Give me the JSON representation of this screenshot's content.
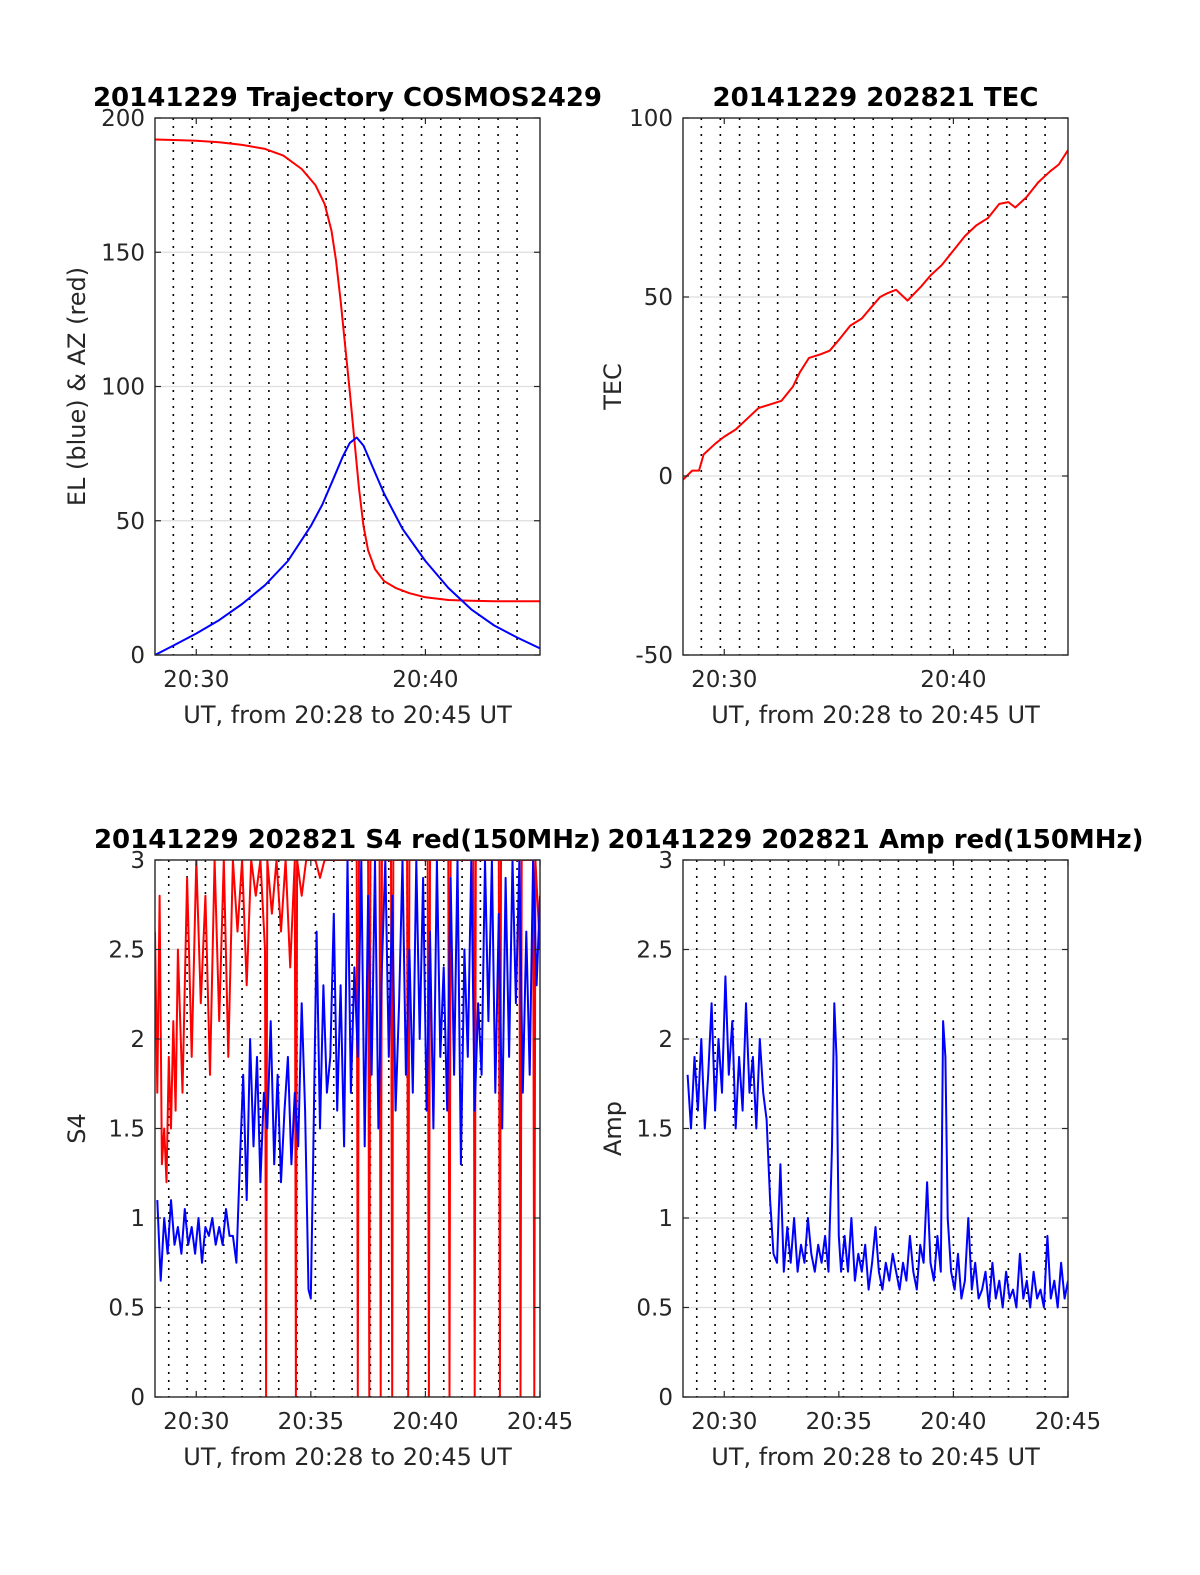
{
  "chart_data": [
    {
      "type": "line",
      "title": "20141229 Trajectory COSMOS2429",
      "xlabel": "UT, from 20:28 to 20:45 UT",
      "ylabel": "EL (blue) & AZ (red)",
      "x_unit": "minutes after 20:00 UT",
      "xlim": [
        28.2,
        45
      ],
      "ylim": [
        0,
        200
      ],
      "xticks": [
        {
          "value": 30,
          "label": "20:30"
        },
        {
          "value": 40,
          "label": "20:40"
        }
      ],
      "yticks": [
        0,
        50,
        100,
        150,
        200
      ],
      "vlines": [
        29,
        29.83,
        30.67,
        31.5,
        32.33,
        33.17,
        34,
        34.83,
        35.67,
        36.5,
        37.33,
        38.17,
        39,
        39.83,
        40.67,
        41.5,
        42.33,
        43.17,
        44
      ],
      "grid": "horizontal",
      "series": [
        {
          "color": "#ff0000",
          "x": [
            28.2,
            29,
            30,
            31,
            32,
            33,
            33.8,
            34.6,
            35.2,
            35.6,
            35.9,
            36.1,
            36.3,
            36.5,
            36.7,
            36.9,
            37.1,
            37.3,
            37.5,
            37.8,
            38.2,
            38.7,
            39.3,
            40,
            41,
            42,
            43,
            44,
            45
          ],
          "y": [
            192,
            191.8,
            191.5,
            191,
            190,
            188.5,
            186,
            181,
            175,
            168,
            158,
            147,
            132,
            115,
            98,
            80,
            62,
            48,
            39,
            32,
            27.5,
            25,
            23,
            21.5,
            20.5,
            20.2,
            20,
            20,
            20
          ]
        },
        {
          "color": "#0000ff",
          "x": [
            28.2,
            29,
            30,
            31,
            32,
            33,
            34,
            35,
            35.5,
            36,
            36.4,
            36.7,
            37,
            37.3,
            37.7,
            38.2,
            39,
            40,
            41,
            42,
            43,
            44,
            45
          ],
          "y": [
            0,
            3.5,
            8,
            13,
            19,
            26,
            35,
            48,
            56,
            66,
            74,
            79,
            81,
            78,
            70,
            60,
            47,
            35,
            25,
            17,
            11,
            6.5,
            2.5
          ]
        }
      ]
    },
    {
      "type": "line",
      "title": "20141229 202821 TEC",
      "xlabel": "UT, from 20:28 to 20:45 UT",
      "ylabel": "TEC",
      "x_unit": "minutes after 20:00 UT",
      "xlim": [
        28.2,
        45
      ],
      "ylim": [
        -50,
        100
      ],
      "xticks": [
        {
          "value": 30,
          "label": "20:30"
        },
        {
          "value": 40,
          "label": "20:40"
        }
      ],
      "yticks": [
        -50,
        0,
        50,
        100
      ],
      "vlines": [
        29,
        29.83,
        30.67,
        31.5,
        32.33,
        33.17,
        34,
        34.83,
        35.67,
        36.5,
        37.33,
        38.17,
        39,
        39.83,
        40.67,
        41.5,
        42.33,
        43.17,
        44
      ],
      "grid": "horizontal",
      "series": [
        {
          "color": "#ff0000",
          "x": [
            28.2,
            28.6,
            28.9,
            29.1,
            29.6,
            30,
            30.5,
            31,
            31.5,
            32,
            32.5,
            33,
            33.3,
            33.7,
            34.2,
            34.6,
            35,
            35.5,
            36,
            36.4,
            36.8,
            37.1,
            37.5,
            38,
            38.6,
            39,
            39.5,
            40,
            40.5,
            41,
            41.5,
            42,
            42.4,
            42.7,
            43.2,
            43.7,
            44.2,
            44.6,
            45
          ],
          "y": [
            -1,
            1.5,
            1.5,
            6,
            9,
            11,
            13,
            16,
            19,
            20,
            21,
            25,
            29,
            33,
            34,
            35,
            38,
            42,
            44,
            47,
            50,
            51,
            52,
            49,
            53,
            56,
            59,
            63,
            67,
            70,
            72,
            76,
            76.5,
            75,
            78,
            82,
            85,
            87,
            91
          ]
        }
      ]
    },
    {
      "type": "line",
      "title": "20141229 202821 S4 red(150MHz)",
      "xlabel": "UT, from 20:28 to 20:45 UT",
      "ylabel": "S4",
      "x_unit": "minutes after 20:00 UT",
      "xlim": [
        28.2,
        45
      ],
      "ylim": [
        0,
        3
      ],
      "xticks": [
        {
          "value": 30,
          "label": "20:30"
        },
        {
          "value": 35,
          "label": "20:35"
        },
        {
          "value": 40,
          "label": "20:40"
        },
        {
          "value": 45,
          "label": "20:45"
        }
      ],
      "yticks": [
        0,
        0.5,
        1,
        1.5,
        2,
        2.5,
        3
      ],
      "vlines": [
        28.8,
        29.6,
        30.4,
        31.2,
        32,
        32.8,
        33.6,
        34.4,
        35.2,
        36,
        36.8,
        37.6,
        38.4,
        39.2,
        40,
        40.8,
        41.6,
        42.4,
        43.2,
        44
      ],
      "grid": "horizontal",
      "series": [
        {
          "color": "#ff0000",
          "x": [
            28.2,
            28.3,
            28.4,
            28.5,
            28.6,
            28.7,
            28.8,
            28.9,
            29.0,
            29.1,
            29.2,
            29.4,
            29.6,
            29.8,
            30.0,
            30.2,
            30.4,
            30.6,
            30.8,
            31.0,
            31.2,
            31.4,
            31.6,
            31.8,
            32.0,
            32.2,
            32.4,
            32.6,
            32.8,
            33.0,
            33.05,
            33.1,
            33.3,
            33.5,
            33.7,
            33.9,
            34.1,
            34.3,
            34.35,
            34.4,
            34.6,
            34.8,
            35.0,
            35.2,
            35.4,
            35.6,
            35.8,
            36.0,
            36.2,
            36.4,
            36.6,
            36.8,
            37.0,
            37.05,
            37.1,
            37.3,
            37.5,
            37.55,
            37.6,
            37.8,
            38.0,
            38.05,
            38.1,
            38.3,
            38.5,
            38.55,
            38.6,
            38.8,
            39.0,
            39.2,
            39.25,
            39.3,
            39.5,
            39.7,
            39.9,
            40.1,
            40.15,
            40.2,
            40.4,
            40.6,
            40.8,
            41.0,
            41.05,
            41.1,
            41.3,
            41.5,
            41.7,
            41.9,
            42.1,
            42.15,
            42.2,
            42.4,
            42.6,
            42.8,
            43.0,
            43.2,
            43.25,
            43.3,
            43.5,
            43.7,
            43.9,
            44.1,
            44.15,
            44.2,
            44.4,
            44.6,
            44.7,
            44.75,
            44.8,
            45.0
          ],
          "y": [
            2.6,
            1.7,
            2.8,
            1.3,
            1.5,
            1.2,
            1.9,
            1.5,
            2.1,
            1.6,
            2.5,
            1.7,
            2.9,
            1.9,
            3,
            2.2,
            2.8,
            1.8,
            3,
            2.1,
            3,
            1.9,
            3,
            2.6,
            3,
            2.3,
            3,
            2.8,
            3,
            2.5,
            0,
            3,
            2.7,
            3,
            2.6,
            3,
            2.4,
            3,
            0,
            3,
            2.8,
            3,
            3,
            3,
            2.9,
            3,
            3,
            3,
            3,
            3,
            3,
            3,
            3,
            0,
            3,
            3,
            3,
            0,
            3,
            3,
            3,
            0,
            3,
            3,
            3,
            0,
            3,
            3,
            3,
            3,
            0,
            3,
            3,
            3,
            3,
            3,
            0,
            3,
            3,
            3,
            3,
            3,
            0,
            3,
            3,
            3,
            3,
            3,
            3,
            0,
            3,
            3,
            3,
            3,
            3,
            3,
            0,
            3,
            3,
            3,
            3,
            3,
            0,
            3,
            3,
            3,
            3,
            0,
            3,
            2.5
          ]
        },
        {
          "color": "#0000ff",
          "x": [
            28.3,
            28.45,
            28.6,
            28.75,
            28.9,
            29.05,
            29.2,
            29.35,
            29.5,
            29.65,
            29.8,
            29.95,
            30.1,
            30.25,
            30.4,
            30.55,
            30.7,
            30.85,
            31.0,
            31.15,
            31.3,
            31.45,
            31.6,
            31.75,
            31.9,
            32.05,
            32.2,
            32.35,
            32.5,
            32.65,
            32.8,
            32.95,
            33.1,
            33.25,
            33.4,
            33.55,
            33.7,
            33.85,
            34.0,
            34.15,
            34.3,
            34.45,
            34.6,
            34.75,
            34.9,
            35.0,
            35.1,
            35.25,
            35.4,
            35.55,
            35.7,
            35.85,
            36.0,
            36.15,
            36.3,
            36.45,
            36.6,
            36.75,
            36.9,
            37.05,
            37.2,
            37.35,
            37.5,
            37.65,
            37.8,
            37.95,
            38.1,
            38.25,
            38.4,
            38.55,
            38.7,
            38.85,
            39.0,
            39.15,
            39.3,
            39.45,
            39.6,
            39.75,
            39.9,
            40.05,
            40.2,
            40.35,
            40.5,
            40.65,
            40.8,
            40.95,
            41.1,
            41.25,
            41.4,
            41.55,
            41.7,
            41.85,
            42.0,
            42.15,
            42.3,
            42.45,
            42.6,
            42.75,
            42.9,
            43.05,
            43.2,
            43.35,
            43.5,
            43.65,
            43.8,
            43.95,
            44.1,
            44.25,
            44.4,
            44.55,
            44.7,
            44.85,
            45.0
          ],
          "y": [
            1.1,
            0.65,
            1.0,
            0.8,
            1.1,
            0.85,
            0.95,
            0.8,
            1.05,
            0.85,
            0.95,
            0.8,
            1.0,
            0.75,
            0.95,
            0.9,
            1.0,
            0.85,
            0.95,
            0.85,
            1.05,
            0.9,
            0.9,
            0.75,
            1.3,
            1.8,
            1.1,
            2.0,
            1.4,
            1.9,
            1.2,
            1.7,
            1.5,
            2.1,
            1.3,
            1.8,
            1.2,
            1.6,
            1.9,
            1.3,
            1.7,
            1.4,
            2.2,
            1.6,
            0.6,
            0.55,
            1.3,
            2.6,
            1.5,
            2.3,
            1.7,
            1.9,
            2.7,
            1.6,
            2.3,
            1.4,
            3.0,
            1.7,
            2.4,
            1.9,
            3.0,
            1.4,
            2.8,
            1.8,
            3.0,
            1.5,
            2.4,
            3.0,
            1.9,
            2.8,
            1.6,
            2.2,
            3.0,
            1.8,
            2.5,
            1.7,
            3.0,
            2.0,
            2.9,
            1.6,
            2.6,
            1.5,
            3.0,
            1.9,
            2.4,
            1.6,
            2.9,
            1.8,
            3.0,
            1.3,
            2.5,
            1.9,
            3.0,
            1.6,
            2.2,
            1.8,
            3.0,
            2.1,
            3.0,
            1.7,
            2.7,
            1.5,
            2.9,
            1.9,
            3.0,
            2.2,
            3.0,
            1.7,
            2.6,
            1.8,
            3.0,
            2.3,
            2.8
          ]
        }
      ]
    },
    {
      "type": "line",
      "title": "20141229 202821 Amp red(150MHz)",
      "xlabel": "UT, from 20:28 to 20:45 UT",
      "ylabel": "Amp",
      "x_unit": "minutes after 20:00 UT",
      "xlim": [
        28.2,
        45
      ],
      "ylim": [
        0,
        3
      ],
      "xticks": [
        {
          "value": 30,
          "label": "20:30"
        },
        {
          "value": 35,
          "label": "20:35"
        },
        {
          "value": 40,
          "label": "20:40"
        },
        {
          "value": 45,
          "label": "20:45"
        }
      ],
      "yticks": [
        0,
        0.5,
        1,
        1.5,
        2,
        2.5,
        3
      ],
      "vlines": [
        28.8,
        29.6,
        30.4,
        31.2,
        32,
        32.8,
        33.6,
        34.4,
        35.2,
        36,
        36.8,
        37.6,
        38.4,
        39.2,
        40,
        40.8,
        41.6,
        42.4,
        43.2,
        44
      ],
      "grid": "horizontal",
      "series": [
        {
          "color": "#0000ff",
          "x": [
            28.4,
            28.55,
            28.7,
            28.85,
            29.0,
            29.15,
            29.3,
            29.45,
            29.6,
            29.75,
            29.9,
            30.05,
            30.2,
            30.35,
            30.5,
            30.65,
            30.8,
            30.95,
            31.1,
            31.25,
            31.4,
            31.55,
            31.7,
            31.85,
            32.0,
            32.15,
            32.3,
            32.45,
            32.6,
            32.75,
            32.9,
            33.05,
            33.2,
            33.35,
            33.5,
            33.65,
            33.8,
            33.95,
            34.1,
            34.25,
            34.4,
            34.55,
            34.7,
            34.8,
            34.9,
            35.0,
            35.1,
            35.25,
            35.4,
            35.55,
            35.7,
            35.85,
            36.0,
            36.15,
            36.3,
            36.45,
            36.6,
            36.75,
            36.9,
            37.05,
            37.2,
            37.35,
            37.5,
            37.65,
            37.8,
            37.95,
            38.1,
            38.25,
            38.4,
            38.55,
            38.7,
            38.85,
            39.0,
            39.15,
            39.3,
            39.45,
            39.55,
            39.65,
            39.75,
            39.9,
            40.05,
            40.2,
            40.35,
            40.5,
            40.65,
            40.8,
            40.95,
            41.1,
            41.25,
            41.4,
            41.55,
            41.7,
            41.85,
            42.0,
            42.15,
            42.3,
            42.45,
            42.6,
            42.75,
            42.9,
            43.05,
            43.2,
            43.35,
            43.5,
            43.65,
            43.8,
            43.95,
            44.1,
            44.25,
            44.4,
            44.55,
            44.7,
            44.85,
            45.0
          ],
          "y": [
            1.8,
            1.5,
            1.9,
            1.6,
            2.0,
            1.5,
            1.8,
            2.2,
            1.6,
            2.0,
            1.7,
            2.35,
            1.8,
            2.1,
            1.5,
            1.9,
            1.6,
            2.2,
            1.7,
            1.9,
            1.5,
            2.0,
            1.7,
            1.55,
            1.1,
            0.8,
            0.75,
            1.3,
            0.7,
            0.95,
            0.75,
            1.0,
            0.7,
            0.85,
            0.75,
            1.0,
            0.8,
            0.7,
            0.85,
            0.75,
            0.9,
            0.7,
            1.4,
            2.2,
            1.9,
            0.9,
            0.7,
            0.9,
            0.7,
            1.0,
            0.65,
            0.8,
            0.7,
            0.85,
            0.6,
            0.75,
            0.95,
            0.7,
            0.6,
            0.75,
            0.65,
            0.8,
            0.7,
            0.6,
            0.75,
            0.65,
            0.9,
            0.7,
            0.6,
            0.85,
            0.75,
            1.2,
            0.75,
            0.65,
            0.9,
            0.7,
            2.1,
            1.9,
            1.0,
            0.7,
            0.6,
            0.8,
            0.55,
            0.65,
            1.0,
            0.6,
            0.75,
            0.55,
            0.6,
            0.7,
            0.5,
            0.75,
            0.55,
            0.65,
            0.5,
            0.7,
            0.55,
            0.6,
            0.5,
            0.8,
            0.55,
            0.65,
            0.5,
            0.7,
            0.55,
            0.6,
            0.5,
            0.9,
            0.55,
            0.65,
            0.5,
            0.75,
            0.55,
            0.65
          ]
        }
      ]
    }
  ]
}
